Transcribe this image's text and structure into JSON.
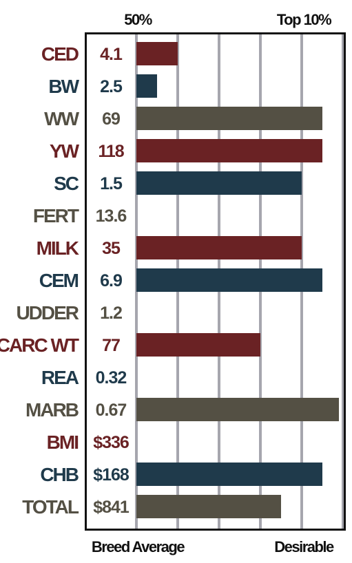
{
  "colors": {
    "maroon": "#6a2224",
    "navy": "#1f3a4b",
    "olive": "#545044",
    "grid": "#a6a6ae",
    "frame": "#111111"
  },
  "chart_data": {
    "type": "bar",
    "orientation": "horizontal",
    "top_labels": [
      "50%",
      "Top 10%"
    ],
    "bottom_labels": [
      "Breed Average",
      "Desirable"
    ],
    "grid": true,
    "rows": [
      {
        "trait": "CED",
        "value_label": "4.1",
        "percent": 20,
        "color": "maroon"
      },
      {
        "trait": "BW",
        "value_label": "2.5",
        "percent": 10,
        "color": "navy"
      },
      {
        "trait": "WW",
        "value_label": "69",
        "percent": 90,
        "color": "olive"
      },
      {
        "trait": "YW",
        "value_label": "118",
        "percent": 90,
        "color": "maroon"
      },
      {
        "trait": "SC",
        "value_label": "1.5",
        "percent": 80,
        "color": "navy"
      },
      {
        "trait": "FERT",
        "value_label": "13.6",
        "percent": 0,
        "color": "olive"
      },
      {
        "trait": "MILK",
        "value_label": "35",
        "percent": 80,
        "color": "maroon"
      },
      {
        "trait": "CEM",
        "value_label": "6.9",
        "percent": 90,
        "color": "navy"
      },
      {
        "trait": "UDDER",
        "value_label": "1.2",
        "percent": 0,
        "color": "olive"
      },
      {
        "trait": "CARC WT",
        "value_label": "77",
        "percent": 60,
        "color": "maroon"
      },
      {
        "trait": "REA",
        "value_label": "0.32",
        "percent": 0,
        "color": "navy"
      },
      {
        "trait": "MARB",
        "value_label": "0.67",
        "percent": 98,
        "color": "olive"
      },
      {
        "trait": "BMI",
        "value_label": "$336",
        "percent": 0,
        "color": "maroon"
      },
      {
        "trait": "CHB",
        "value_label": "$168",
        "percent": 90,
        "color": "navy"
      },
      {
        "trait": "TOTAL",
        "value_label": "$841",
        "percent": 70,
        "color": "olive"
      }
    ]
  }
}
